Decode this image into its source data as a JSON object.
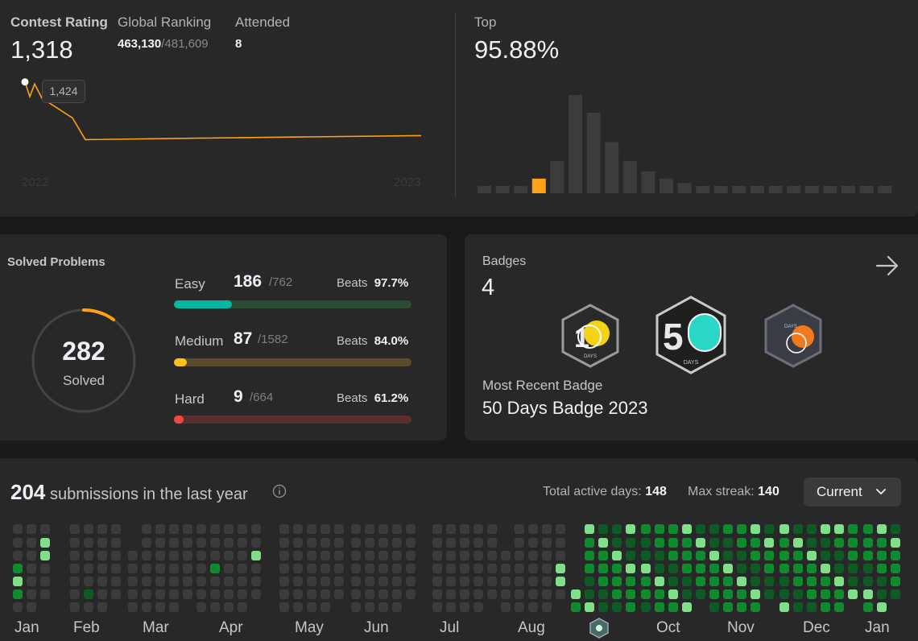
{
  "contest": {
    "rating_label": "Contest Rating",
    "rating_value": "1,318",
    "global_label": "Global Ranking",
    "global_rank": "463,130",
    "global_total": "/481,609",
    "attended_label": "Attended",
    "attended_value": "8",
    "tooltip_value": "1,424",
    "year_start": "2022",
    "year_end": "2023",
    "top_label": "Top",
    "top_value": "95.88%",
    "accent_color": "#ffa116"
  },
  "solved": {
    "title": "Solved Problems",
    "total": "282",
    "total_label": "Solved",
    "difficulties": [
      {
        "name": "Easy",
        "count": "186",
        "total": "/762",
        "beats_label": "Beats",
        "beats": "97.7%",
        "fraction": 0.244,
        "color": "#00b8a3",
        "track": "#2c4b34"
      },
      {
        "name": "Medium",
        "count": "87",
        "total": "/1582",
        "beats_label": "Beats",
        "beats": "84.0%",
        "fraction": 0.055,
        "color": "#ffc01e",
        "track": "#5b4d2c"
      },
      {
        "name": "Hard",
        "count": "9",
        "total": "/664",
        "beats_label": "Beats",
        "beats": "61.2%",
        "fraction": 0.014,
        "color": "#ef4743",
        "track": "#5c2f2f"
      }
    ]
  },
  "badges": {
    "title": "Badges",
    "count": "4",
    "recent_label": "Most Recent Badge",
    "recent_name": "50 Days Badge 2023",
    "items": [
      {
        "icon": "100-days-badge-icon",
        "caption": "DAYS"
      },
      {
        "icon": "50-days-badge-icon",
        "caption": "DAYS"
      },
      {
        "icon": "daily-badge-icon",
        "caption": "DAYS"
      }
    ]
  },
  "submissions": {
    "count": "204",
    "text": "submissions in the last year",
    "active_label": "Total active days:",
    "active_value": "148",
    "streak_label": "Max streak:",
    "streak_value": "140",
    "dropdown_value": "Current",
    "months": [
      "Jan",
      "Feb",
      "Mar",
      "Apr",
      "May",
      "Jun",
      "Jul",
      "Aug",
      "Oct",
      "Nov",
      "Dec",
      "Jan"
    ]
  },
  "chart_data": [
    {
      "type": "line",
      "x": [
        1,
        2,
        3,
        4,
        5,
        6,
        7,
        8
      ],
      "y": [
        1424,
        1395,
        1420,
        1392,
        1353,
        1310,
        1314,
        1318
      ],
      "xlabel": "",
      "ylabel": "",
      "tick_labels": [
        "2022",
        "2023"
      ]
    },
    {
      "type": "bar",
      "values": [
        5,
        5,
        5,
        10,
        22,
        67,
        55,
        35,
        22,
        15,
        10,
        7,
        5,
        5,
        5,
        5,
        5,
        5,
        5,
        5,
        5,
        5,
        5
      ],
      "highlight_index": 3
    }
  ]
}
